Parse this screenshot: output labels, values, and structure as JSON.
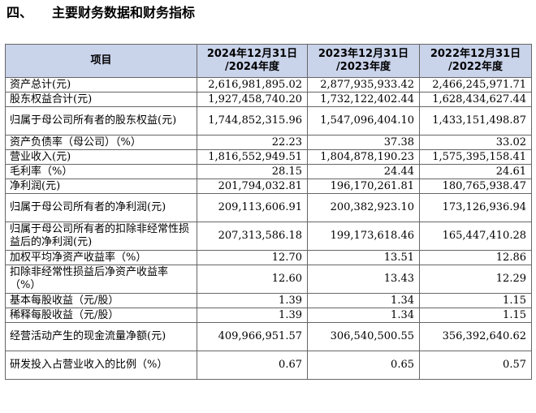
{
  "section": {
    "number": "四、",
    "title": "主要财务数据和财务指标"
  },
  "table": {
    "item_header": "项目",
    "columns": [
      {
        "line1": "2024年12月31日",
        "line2": "/2024年度"
      },
      {
        "line1": "2023年12月31日",
        "line2": "/2023年度"
      },
      {
        "line1": "2022年12月31日",
        "line2": "/2022年度"
      }
    ],
    "rows": [
      {
        "label": "资产总计(元)",
        "values": [
          "2,616,981,895.02",
          "2,877,935,933.42",
          "2,466,245,971.71"
        ]
      },
      {
        "label": "股东权益合计(元)",
        "values": [
          "1,927,458,740.20",
          "1,732,122,402.44",
          "1,628,434,627.44"
        ]
      },
      {
        "label": "归属于母公司所有者的股东权益(元)",
        "values": [
          "1,744,852,315.96",
          "1,547,096,404.10",
          "1,433,151,498.87"
        ]
      },
      {
        "label": "资产负债率（母公司）（%）",
        "values": [
          "22.23",
          "37.38",
          "33.02"
        ]
      },
      {
        "label": "营业收入(元)",
        "values": [
          "1,816,552,949.51",
          "1,804,878,190.23",
          "1,575,395,158.41"
        ]
      },
      {
        "label": "毛利率（%）",
        "values": [
          "28.15",
          "24.44",
          "24.61"
        ]
      },
      {
        "label": "净利润(元)",
        "values": [
          "201,794,032.81",
          "196,170,261.81",
          "180,765,938.47"
        ]
      },
      {
        "label": "归属于母公司所有者的净利润(元)",
        "values": [
          "209,113,606.91",
          "200,382,923.10",
          "173,126,936.94"
        ]
      },
      {
        "label": "归属于母公司所有者的扣除非经常性损益后的净利润(元)",
        "values": [
          "207,313,586.18",
          "199,173,618.46",
          "165,447,410.28"
        ]
      },
      {
        "label": "加权平均净资产收益率（%）",
        "values": [
          "12.70",
          "13.51",
          "12.86"
        ]
      },
      {
        "label": "扣除非经常性损益后净资产收益率（%）",
        "values": [
          "12.60",
          "13.43",
          "12.29"
        ]
      },
      {
        "label": "基本每股收益（元/股）",
        "values": [
          "1.39",
          "1.34",
          "1.15"
        ]
      },
      {
        "label": "稀释每股收益（元/股）",
        "values": [
          "1.39",
          "1.34",
          "1.15"
        ]
      },
      {
        "label": "经营活动产生的现金流量净额(元)",
        "values": [
          "409,966,951.57",
          "306,540,500.55",
          "356,392,640.62"
        ]
      },
      {
        "label": "研发投入占营业收入的比例（%）",
        "values": [
          "0.67",
          "0.65",
          "0.57"
        ]
      }
    ]
  }
}
